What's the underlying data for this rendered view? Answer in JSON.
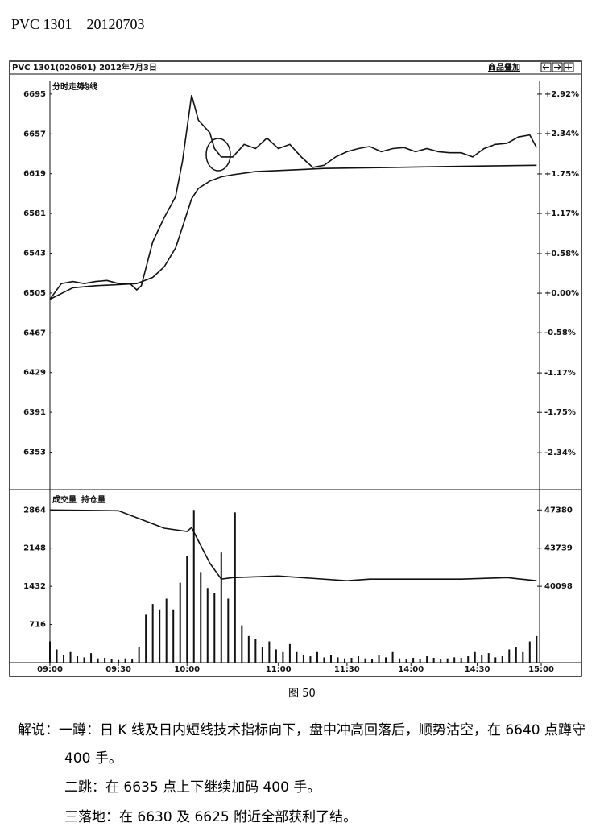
{
  "header": {
    "title": "PVC 1301    20120703"
  },
  "chart_data": [
    {
      "type": "line",
      "title": "PVC 1301(020601) 2012年7月3日",
      "button": "商品叠加",
      "xlim": [
        0,
        215
      ],
      "ylim": [
        6318,
        6708
      ],
      "yticks": [
        6695,
        6657,
        6619,
        6581,
        6543,
        6505,
        6467,
        6429,
        6391,
        6353
      ],
      "y2lim": [
        -2.87,
        3.12
      ],
      "y2ticks": [
        {
          "value": 2.92,
          "label": "+2.92%"
        },
        {
          "value": 2.34,
          "label": "+2.34%"
        },
        {
          "value": 1.75,
          "label": "+1.75%"
        },
        {
          "value": 1.17,
          "label": "+1.17%"
        },
        {
          "value": 0.58,
          "label": "+0.58%"
        },
        {
          "value": 0.0,
          "label": "+0.00%"
        },
        {
          "value": -0.58,
          "label": "-0.58%"
        },
        {
          "value": -1.17,
          "label": "-1.17%"
        },
        {
          "value": -1.75,
          "label": "-1.75%"
        },
        {
          "value": -2.34,
          "label": "-2.34%"
        }
      ],
      "series": [
        {
          "name": "分时走势",
          "color": "#111111",
          "x": [
            0,
            5,
            10,
            15,
            20,
            25,
            30,
            35,
            38,
            40,
            45,
            50,
            55,
            58,
            62,
            65,
            70,
            72,
            75,
            80,
            85,
            90,
            95,
            100,
            105,
            110,
            115,
            120,
            125,
            130,
            135,
            140,
            145,
            150,
            155,
            160,
            165,
            170,
            175,
            180,
            185,
            190,
            195,
            200,
            205,
            210,
            213
          ],
          "values": [
            6499,
            6514,
            6516,
            6514,
            6516,
            6517,
            6514,
            6514,
            6508,
            6512,
            6554,
            6577,
            6597,
            6631,
            6694,
            6670,
            6658,
            6643,
            6635,
            6635,
            6647,
            6643,
            6653,
            6643,
            6647,
            6635,
            6625,
            6627,
            6635,
            6640,
            6643,
            6645,
            6640,
            6643,
            6644,
            6640,
            6643,
            6640,
            6639,
            6639,
            6635,
            6643,
            6647,
            6648,
            6654,
            6656,
            6644
          ]
        },
        {
          "name": "均线",
          "color": "#111111",
          "x": [
            0,
            10,
            20,
            30,
            38,
            45,
            50,
            55,
            58,
            62,
            65,
            70,
            75,
            80,
            90,
            100,
            120,
            150,
            180,
            213
          ],
          "values": [
            6499,
            6510,
            6512,
            6513,
            6514,
            6520,
            6530,
            6548,
            6568,
            6595,
            6605,
            6612,
            6616,
            6618,
            6621,
            6622,
            6624,
            6625,
            6626,
            6627
          ]
        }
      ]
    },
    {
      "type": "bar",
      "xlim": [
        0,
        215
      ],
      "xticks": [
        {
          "value": 0,
          "label": "09:00"
        },
        {
          "value": 30,
          "label": "09:30"
        },
        {
          "value": 60,
          "label": "10:00"
        },
        {
          "value": 100,
          "label": "11:00"
        },
        {
          "value": 130,
          "label": "11:30"
        },
        {
          "value": 158,
          "label": "14:00"
        },
        {
          "value": 187,
          "label": "14:30"
        },
        {
          "value": 215,
          "label": "15:00"
        }
      ],
      "ylim": [
        0,
        3170
      ],
      "yticks": [
        2864,
        2148,
        1432,
        716
      ],
      "y2lim": [
        32816,
        48936
      ],
      "y2ticks": [
        47380,
        43739,
        40098
      ],
      "series": [
        {
          "name": "成交量",
          "color": "#111111",
          "x": [
            0,
            3,
            6,
            9,
            12,
            15,
            18,
            21,
            24,
            27,
            30,
            33,
            36,
            39,
            42,
            45,
            48,
            51,
            54,
            57,
            60,
            63,
            66,
            69,
            72,
            75,
            78,
            81,
            84,
            87,
            90,
            93,
            96,
            99,
            102,
            105,
            108,
            111,
            114,
            117,
            120,
            123,
            126,
            129,
            132,
            135,
            138,
            141,
            144,
            147,
            150,
            153,
            156,
            159,
            162,
            165,
            168,
            171,
            174,
            177,
            180,
            183,
            186,
            189,
            192,
            195,
            198,
            201,
            204,
            207,
            210,
            213
          ],
          "values": [
            400,
            250,
            150,
            200,
            120,
            100,
            180,
            80,
            90,
            60,
            50,
            80,
            60,
            300,
            900,
            1100,
            1000,
            1200,
            1000,
            1500,
            2000,
            2864,
            1700,
            1400,
            1300,
            2065,
            1200,
            2818,
            700,
            500,
            450,
            300,
            400,
            250,
            200,
            350,
            200,
            150,
            120,
            200,
            100,
            150,
            100,
            80,
            90,
            120,
            80,
            70,
            150,
            100,
            200,
            80,
            60,
            90,
            70,
            120,
            90,
            60,
            80,
            100,
            90,
            120,
            200,
            150,
            180,
            100,
            120,
            250,
            300,
            200,
            400,
            500
          ]
        },
        {
          "name": "持仓量",
          "color": "#111111",
          "axis": "y2",
          "x": [
            0,
            30,
            40,
            50,
            60,
            62,
            70,
            75,
            80,
            100,
            130,
            140,
            180,
            200,
            213
          ],
          "values": [
            47380,
            47304,
            46470,
            45635,
            45332,
            45700,
            42298,
            40781,
            40932,
            41084,
            40629,
            40781,
            40781,
            40932,
            40629
          ]
        }
      ]
    }
  ],
  "caption": "图 50",
  "notes": [
    "解说：一蹲：日 K 线及日内短线技术指标向下，盘中冲高回落后，顺势沽空，在 6640 点蹲守 400 手。",
    "二跳：在 6635 点上下继续加码 400 手。",
    "三落地：在 6630 及 6625 附近全部获利了结。"
  ]
}
